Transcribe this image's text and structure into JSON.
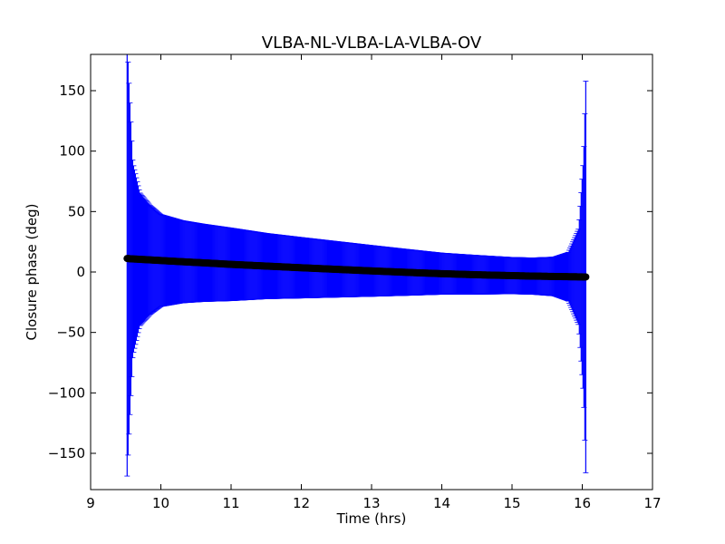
{
  "chart_data": {
    "type": "scatter",
    "title": "VLBA-NL-VLBA-LA-VLBA-OV",
    "xlabel": "Time (hrs)",
    "ylabel": "Closure phase (deg)",
    "xlim": [
      9,
      17
    ],
    "ylim": [
      -180,
      180
    ],
    "xticks": [
      9,
      10,
      11,
      12,
      13,
      14,
      15,
      16,
      17
    ],
    "yticks": [
      150,
      100,
      50,
      0,
      -50,
      -100,
      -150
    ],
    "xtick_labels": [
      "9",
      "10",
      "11",
      "12",
      "13",
      "14",
      "15",
      "16",
      "17"
    ],
    "ytick_labels": [
      "150",
      "100",
      "50",
      "0",
      "−50",
      "−100",
      "−150"
    ],
    "grid": false,
    "series": [
      {
        "marker_color": "#000000",
        "errorbar_color": "#0000ff",
        "x": [
          9.52,
          9.55,
          9.6,
          9.7,
          9.85,
          10.0,
          10.3,
          10.6,
          11.0,
          11.5,
          12.0,
          12.5,
          13.0,
          13.5,
          14.0,
          14.5,
          15.0,
          15.3,
          15.6,
          15.8,
          15.95,
          16.02,
          16.05
        ],
        "y": [
          11.2,
          11.0,
          10.8,
          10.5,
          10.0,
          9.5,
          8.5,
          7.6,
          6.3,
          4.9,
          3.5,
          2.2,
          0.9,
          -0.3,
          -1.4,
          -2.3,
          -3.0,
          -3.4,
          -3.7,
          -3.9,
          -4.0,
          -4.1,
          -4.1
        ],
        "err": [
          180,
          140,
          80,
          55,
          45,
          38,
          34,
          32,
          30,
          27,
          25,
          23,
          21,
          19,
          17,
          16,
          15,
          15,
          16,
          20,
          40,
          100,
          162
        ]
      }
    ]
  }
}
